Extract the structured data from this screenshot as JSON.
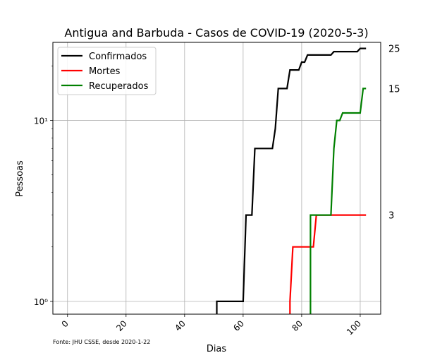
{
  "chart_data": {
    "type": "line",
    "title": "Antigua and Barbuda - Casos de COVID-19 (2020-5-3)",
    "xlabel": "Dias",
    "ylabel": "Pessoas",
    "yscale": "log",
    "xlim": [
      -5,
      107
    ],
    "ylim": [
      0.85,
      27
    ],
    "xticks": [
      0,
      20,
      40,
      60,
      80,
      100
    ],
    "yticks": [
      {
        "value": 1,
        "label": "10⁰"
      },
      {
        "value": 10,
        "label": "10¹"
      }
    ],
    "grid": true,
    "legend_position": "top-left",
    "source_note": "Fonte: JHU CSSE, desde 2020-1-22",
    "end_labels": [
      {
        "value": 25,
        "label": "25"
      },
      {
        "value": 15,
        "label": "15"
      },
      {
        "value": 3,
        "label": "3"
      }
    ],
    "series": [
      {
        "name": "Confirmados",
        "color": "#000000",
        "points": [
          [
            51,
            0.8
          ],
          [
            51,
            1
          ],
          [
            60,
            1
          ],
          [
            61,
            3
          ],
          [
            63,
            3
          ],
          [
            64,
            7
          ],
          [
            70,
            7
          ],
          [
            71,
            9
          ],
          [
            72,
            15
          ],
          [
            75,
            15
          ],
          [
            76,
            19
          ],
          [
            79,
            19
          ],
          [
            80,
            21
          ],
          [
            81,
            21
          ],
          [
            82,
            23
          ],
          [
            90,
            23
          ],
          [
            91,
            24
          ],
          [
            99,
            24
          ],
          [
            100,
            25
          ],
          [
            102,
            25
          ]
        ]
      },
      {
        "name": "Mortes",
        "color": "#ff0000",
        "points": [
          [
            76,
            0.8
          ],
          [
            76,
            1
          ],
          [
            77,
            2
          ],
          [
            84,
            2
          ],
          [
            85,
            3
          ],
          [
            102,
            3
          ]
        ]
      },
      {
        "name": "Recuperados",
        "color": "#008000",
        "points": [
          [
            83,
            0.8
          ],
          [
            83,
            3
          ],
          [
            90,
            3
          ],
          [
            91,
            7
          ],
          [
            92,
            10
          ],
          [
            93,
            10
          ],
          [
            94,
            11
          ],
          [
            100,
            11
          ],
          [
            101,
            15
          ],
          [
            102,
            15
          ]
        ]
      }
    ]
  }
}
